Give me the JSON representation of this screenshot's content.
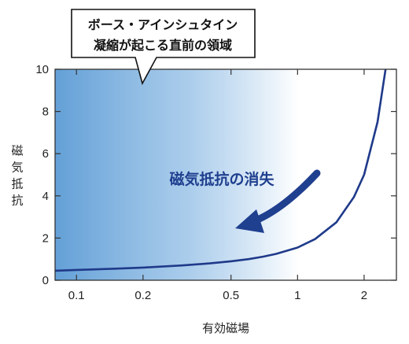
{
  "chart_data": {
    "type": "line",
    "xlabel": "有効磁場",
    "ylabel": "磁気抵抗",
    "xscale": "log",
    "xlim": [
      0.08,
      2.8
    ],
    "ylim": [
      0,
      10
    ],
    "xticks": [
      0.1,
      0.2,
      0.5,
      1,
      2
    ],
    "xtick_labels": [
      "0.1",
      "0.2",
      "0.5",
      "1",
      "2"
    ],
    "yticks": [
      0,
      2,
      4,
      6,
      8,
      10
    ],
    "ytick_labels": [
      "0",
      "2",
      "4",
      "6",
      "8",
      "10"
    ],
    "grid": false,
    "series": [
      {
        "x": [
          0.08,
          0.1,
          0.15,
          0.2,
          0.3,
          0.4,
          0.5,
          0.6,
          0.7,
          0.8,
          1.0,
          1.2,
          1.5,
          1.8,
          2.0,
          2.3,
          2.5
        ],
        "y": [
          0.45,
          0.49,
          0.55,
          0.6,
          0.7,
          0.8,
          0.9,
          1.0,
          1.12,
          1.25,
          1.55,
          1.95,
          2.75,
          3.95,
          5.0,
          7.5,
          10.0
        ],
        "color": "#1f3a8a"
      }
    ],
    "shaded_region": {
      "x_from": 0.08,
      "x_to": 1.0,
      "color": "#5b9bd5"
    },
    "annotations": {
      "callout_lines": [
        "ボース・アインシュタイン",
        "凝縮が起こる直前の領域"
      ],
      "arrow_label": "磁気抵抗の消失",
      "arrow_color": "#1f3f8f"
    }
  }
}
